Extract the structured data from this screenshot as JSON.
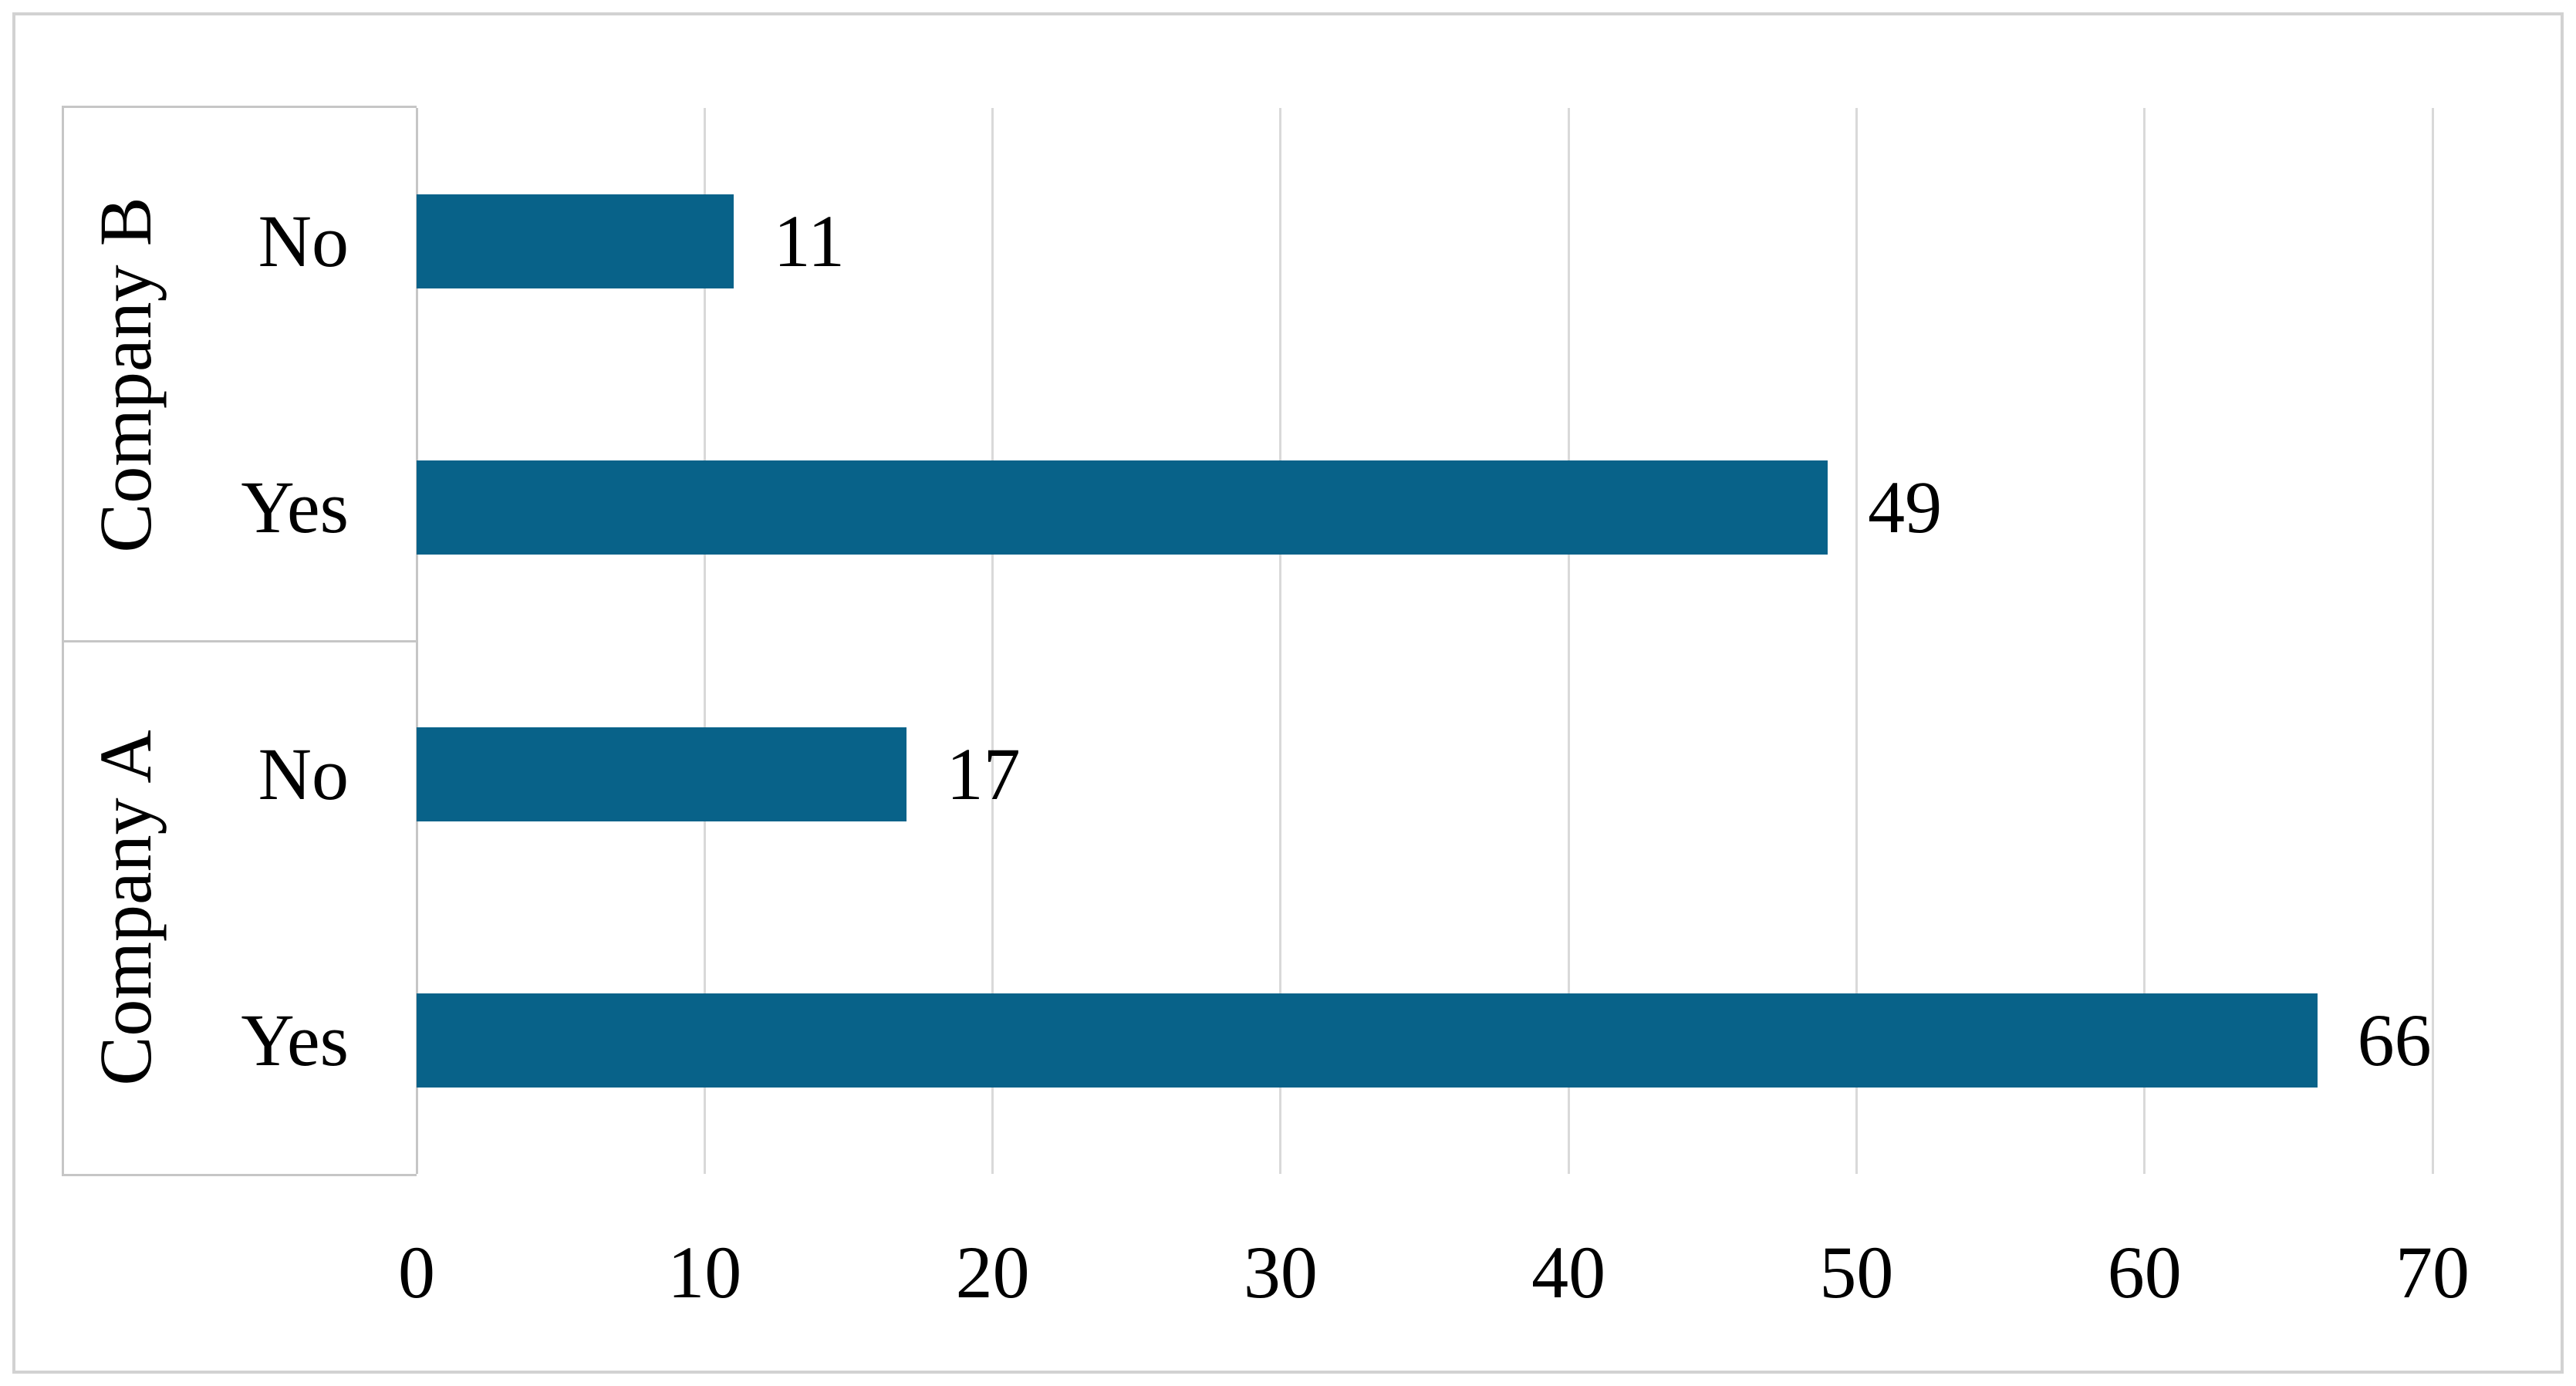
{
  "figure": {
    "background": "#ffffff",
    "border_color": "#d2d2d2"
  },
  "chart_data": {
    "type": "bar",
    "orientation": "horizontal",
    "title": "",
    "xlabel": "",
    "ylabel": "",
    "legend": "none",
    "grid": true,
    "xlim": [
      0,
      70
    ],
    "x_ticks": [
      "0",
      "10",
      "20",
      "30",
      "40",
      "50",
      "60",
      "70"
    ],
    "groups": [
      {
        "label": "Company B",
        "bars": [
          {
            "category": "No",
            "value": 11
          },
          {
            "category": "Yes",
            "value": 49
          }
        ]
      },
      {
        "label": "Company A",
        "bars": [
          {
            "category": "No",
            "value": 17
          },
          {
            "category": "Yes",
            "value": 66
          }
        ]
      }
    ],
    "data_labels": [
      11,
      49,
      17,
      66
    ],
    "bar_color": "#086289",
    "gridline_color": "#d9d9d9",
    "axis_line_color": "#c6c6c6",
    "text_color": "#000000"
  }
}
